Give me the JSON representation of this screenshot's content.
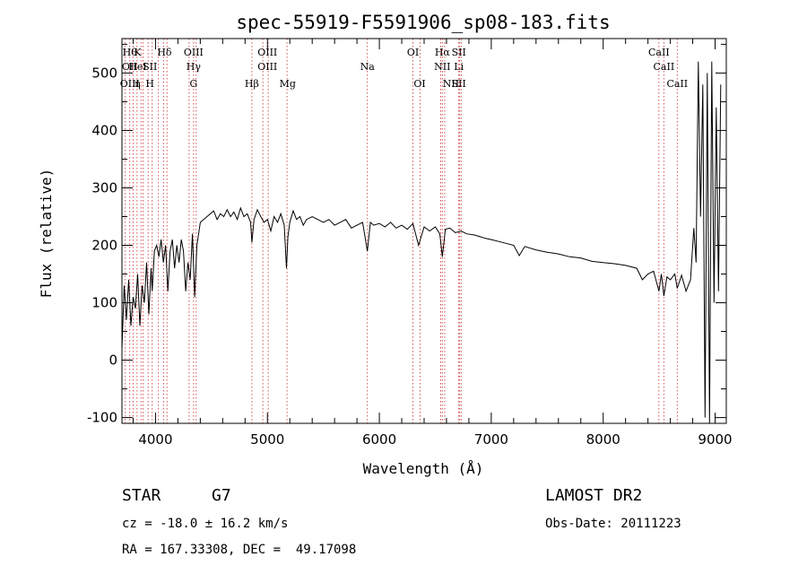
{
  "chart_data": {
    "type": "line",
    "title": "spec-55919-F5591906_sp08-183.fits",
    "xlabel": "Wavelength (Å)",
    "ylabel": "Flux (relative)",
    "xlim": [
      3700,
      9100
    ],
    "ylim": [
      -110,
      560
    ],
    "xticks": [
      4000,
      5000,
      6000,
      7000,
      8000,
      9000
    ],
    "yticks": [
      -100,
      0,
      100,
      200,
      300,
      400,
      500
    ],
    "grid": false,
    "series": [
      {
        "x": [
          3700,
          3720,
          3740,
          3760,
          3780,
          3800,
          3820,
          3840,
          3860,
          3880,
          3900,
          3920,
          3940,
          3960,
          3970,
          3990,
          4010,
          4030,
          4050,
          4070,
          4090,
          4110,
          4130,
          4150,
          4170,
          4190,
          4210,
          4230,
          4250,
          4270,
          4290,
          4310,
          4330,
          4350,
          4370,
          4400,
          4430,
          4460,
          4490,
          4520,
          4550,
          4580,
          4610,
          4640,
          4670,
          4700,
          4730,
          4760,
          4790,
          4820,
          4850,
          4861,
          4880,
          4910,
          4940,
          4970,
          5000,
          5030,
          5060,
          5090,
          5120,
          5150,
          5170,
          5183,
          5200,
          5230,
          5260,
          5290,
          5320,
          5350,
          5400,
          5450,
          5500,
          5550,
          5600,
          5650,
          5700,
          5750,
          5800,
          5850,
          5893,
          5920,
          5950,
          6000,
          6050,
          6100,
          6150,
          6200,
          6250,
          6300,
          6350,
          6400,
          6450,
          6500,
          6540,
          6563,
          6590,
          6630,
          6680,
          6730,
          6780,
          6850,
          6900,
          6950,
          7000,
          7100,
          7200,
          7250,
          7300,
          7400,
          7500,
          7600,
          7700,
          7800,
          7900,
          8000,
          8100,
          8200,
          8300,
          8350,
          8400,
          8450,
          8498,
          8520,
          8542,
          8570,
          8600,
          8640,
          8662,
          8700,
          8740,
          8780,
          8810,
          8830,
          8850,
          8870,
          8890,
          8910,
          8930,
          8950,
          8970,
          8990,
          9010,
          9030,
          9050
        ],
        "values": [
          20,
          130,
          70,
          140,
          60,
          110,
          90,
          150,
          60,
          130,
          100,
          170,
          80,
          160,
          120,
          190,
          200,
          180,
          210,
          170,
          200,
          120,
          190,
          210,
          160,
          200,
          170,
          210,
          190,
          120,
          170,
          140,
          220,
          110,
          200,
          240,
          245,
          250,
          255,
          260,
          245,
          255,
          250,
          262,
          250,
          258,
          245,
          265,
          250,
          255,
          240,
          205,
          245,
          262,
          250,
          240,
          245,
          225,
          250,
          240,
          255,
          235,
          160,
          215,
          240,
          260,
          245,
          250,
          235,
          245,
          250,
          245,
          240,
          245,
          235,
          240,
          245,
          230,
          235,
          240,
          190,
          240,
          235,
          238,
          232,
          240,
          230,
          235,
          228,
          238,
          200,
          232,
          225,
          232,
          220,
          180,
          228,
          230,
          222,
          225,
          220,
          218,
          215,
          212,
          210,
          205,
          200,
          182,
          198,
          192,
          188,
          185,
          180,
          178,
          172,
          170,
          168,
          165,
          160,
          140,
          150,
          155,
          120,
          150,
          112,
          145,
          140,
          150,
          125,
          148,
          120,
          140,
          230,
          170,
          520,
          250,
          480,
          -100,
          500,
          -110,
          520,
          100,
          440,
          120,
          480
        ]
      }
    ],
    "line_labels": [
      {
        "x": 3770,
        "lines": [
          "Hθ",
          "OII",
          "OIII"
        ]
      },
      {
        "x": 3840,
        "lines": [
          "K",
          "HeI",
          "η"
        ]
      },
      {
        "x": 3950,
        "lines": [
          "",
          "SII",
          "H"
        ]
      },
      {
        "x": 4080,
        "lines": [
          "Hδ"
        ]
      },
      {
        "x": 4340,
        "lines": [
          "OIII",
          "Hγ",
          "G"
        ]
      },
      {
        "x": 4861,
        "lines": [
          "",
          "",
          "Hβ"
        ]
      },
      {
        "x": 5000,
        "lines": [
          "OIII",
          "OIII"
        ]
      },
      {
        "x": 5180,
        "lines": [
          "",
          "",
          "Mg"
        ]
      },
      {
        "x": 5893,
        "lines": [
          "",
          "Na"
        ]
      },
      {
        "x": 6300,
        "lines": [
          "OI"
        ]
      },
      {
        "x": 6360,
        "lines": [
          "",
          "",
          "OI"
        ]
      },
      {
        "x": 6563,
        "lines": [
          "Hα",
          "NII"
        ]
      },
      {
        "x": 6640,
        "lines": [
          "",
          "",
          "NII"
        ]
      },
      {
        "x": 6710,
        "lines": [
          "SII",
          "Li",
          "SII"
        ]
      },
      {
        "x": 8498,
        "lines": [
          "CaII"
        ]
      },
      {
        "x": 8542,
        "lines": [
          "",
          "CaII"
        ]
      },
      {
        "x": 8662,
        "lines": [
          "",
          "",
          "CaII"
        ]
      }
    ],
    "line_markers": [
      3730,
      3770,
      3800,
      3835,
      3870,
      3889,
      3934,
      3970,
      4026,
      4072,
      4102,
      4300,
      4340,
      4363,
      4861,
      4959,
      5007,
      5175,
      5893,
      6300,
      6364,
      6548,
      6563,
      6584,
      6707,
      6717,
      6731,
      8498,
      8542,
      8662
    ]
  },
  "info": {
    "class_label": "STAR",
    "subclass": "G7",
    "survey": "LAMOST DR2",
    "cz": "cz = -18.0 ± 16.2 km/s",
    "obs_date": "Obs-Date: 20111223",
    "coords": "RA = 167.33308, DEC =  49.17098"
  }
}
